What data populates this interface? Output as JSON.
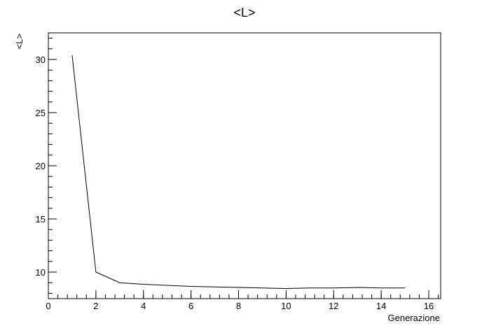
{
  "chart_data": {
    "type": "line",
    "title": "<L>",
    "xlabel": "Generazione",
    "ylabel": "<L>",
    "xlim": [
      0,
      16.5
    ],
    "ylim": [
      7.5,
      32.5
    ],
    "grid": false,
    "x_ticks": [
      0,
      2,
      4,
      6,
      8,
      10,
      12,
      14,
      16
    ],
    "y_ticks": [
      10,
      15,
      20,
      25,
      30
    ],
    "series": [
      {
        "x": [
          1,
          2,
          3,
          4,
          5,
          6,
          7,
          8,
          9,
          10,
          11,
          12,
          13,
          14,
          15
        ],
        "y": [
          30.4,
          10.0,
          9.0,
          8.85,
          8.75,
          8.65,
          8.6,
          8.55,
          8.5,
          8.45,
          8.5,
          8.5,
          8.55,
          8.5,
          8.5
        ]
      }
    ]
  }
}
